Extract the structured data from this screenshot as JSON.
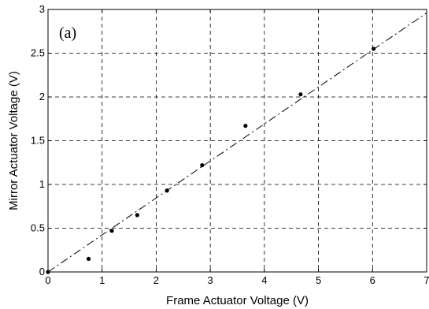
{
  "chart_data": {
    "type": "scatter",
    "title": "",
    "annotation": "(a)",
    "xlabel": "Frame Actuator Voltage (V)",
    "ylabel": "Mirror Actuator Voltage (V)",
    "xlim": [
      0,
      7
    ],
    "ylim": [
      0,
      3
    ],
    "xticks": [
      0,
      1,
      2,
      3,
      4,
      5,
      6,
      7
    ],
    "yticks": [
      0,
      0.5,
      1,
      1.5,
      2,
      2.5,
      3
    ],
    "xtick_labels": [
      "0",
      "1",
      "2",
      "3",
      "4",
      "5",
      "6",
      "7"
    ],
    "ytick_labels": [
      "0",
      "0.5",
      "1",
      "1.5",
      "2",
      "2.5",
      "3"
    ],
    "grid": true,
    "series": [
      {
        "style": "points",
        "x": [
          0,
          0.75,
          1.18,
          1.65,
          2.2,
          2.85,
          3.65,
          4.67,
          6.02
        ],
        "y": [
          0,
          0.15,
          0.47,
          0.65,
          0.93,
          1.22,
          1.67,
          2.03,
          2.55
        ]
      },
      {
        "style": "dash-dot line",
        "x": [
          0,
          7
        ],
        "y": [
          0,
          2.96
        ]
      }
    ]
  }
}
